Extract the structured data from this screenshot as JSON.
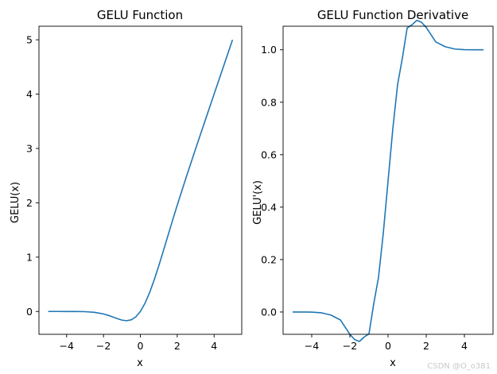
{
  "watermark": "CSDN @O_o381",
  "colors": {
    "line": "#1f77b4",
    "axes": "#000000",
    "background": "#ffffff",
    "watermark": "#c8c8c8"
  },
  "chart_data": [
    {
      "type": "line",
      "title": "GELU Function",
      "xlabel": "x",
      "ylabel": "GELU(x)",
      "xlim": [
        -5.5,
        5.5
      ],
      "ylim": [
        -0.42,
        5.25
      ],
      "xticks": [
        -4,
        -2,
        0,
        2,
        4
      ],
      "yticks": [
        0,
        1,
        2,
        3,
        4,
        5
      ],
      "xtick_labels": [
        "−4",
        "−2",
        "0",
        "2",
        "4"
      ],
      "ytick_labels": [
        "0",
        "1",
        "2",
        "3",
        "4",
        "5"
      ],
      "grid": false,
      "series": [
        {
          "x": [
            -5,
            -4.5,
            -4,
            -3.5,
            -3,
            -2.5,
            -2,
            -1.75,
            -1.5,
            -1.25,
            -1,
            -0.75,
            -0.5,
            -0.25,
            0,
            0.25,
            0.5,
            0.75,
            1,
            1.25,
            1.5,
            1.75,
            2,
            2.5,
            3,
            3.5,
            4,
            4.5,
            5
          ],
          "y": [
            0.0,
            0.0,
            -0.0001,
            -0.0008,
            -0.0036,
            -0.0155,
            -0.0455,
            -0.0702,
            -0.1002,
            -0.132,
            -0.1588,
            -0.17,
            -0.1543,
            -0.1003,
            0.0,
            0.1497,
            0.3457,
            0.58,
            0.8412,
            1.118,
            1.3998,
            1.6798,
            1.9545,
            2.4845,
            2.9964,
            3.4992,
            3.9999,
            4.5,
            5.0
          ]
        }
      ]
    },
    {
      "type": "line",
      "title": "GELU Function Derivative",
      "xlabel": "x",
      "ylabel": "GELU'(x)",
      "xlim": [
        -5.5,
        5.5
      ],
      "ylim": [
        -0.085,
        1.09
      ],
      "xticks": [
        -4,
        -2,
        0,
        2,
        4
      ],
      "yticks": [
        0.0,
        0.2,
        0.4,
        0.6,
        0.8,
        1.0
      ],
      "xtick_labels": [
        "−4",
        "−2",
        "0",
        "2",
        "4"
      ],
      "ytick_labels": [
        "0.0",
        "0.2",
        "0.4",
        "0.6",
        "0.8",
        "1.0"
      ],
      "grid": false,
      "series": [
        {
          "x": [
            -5,
            -4.5,
            -4,
            -3.5,
            -3,
            -2.5,
            -2,
            -1.75,
            -1.5,
            -1.25,
            -1,
            -0.75,
            -0.5,
            -0.25,
            0,
            0.25,
            0.5,
            0.75,
            1,
            1.25,
            1.5,
            1.75,
            2,
            2.5,
            3,
            3.5,
            4,
            4.5,
            5
          ],
          "y": [
            0.0,
            -0.0,
            -0.0005,
            -0.0029,
            -0.0116,
            -0.0301,
            -0.0852,
            -0.1051,
            -0.1122,
            -0.0952,
            -0.0833,
            0.0316,
            0.1325,
            0.3007,
            0.5,
            0.6993,
            0.8675,
            0.9684,
            1.0833,
            1.0952,
            1.1122,
            1.1051,
            1.0852,
            1.0301,
            1.0116,
            1.0029,
            1.0005,
            1.0,
            1.0
          ]
        }
      ]
    }
  ]
}
